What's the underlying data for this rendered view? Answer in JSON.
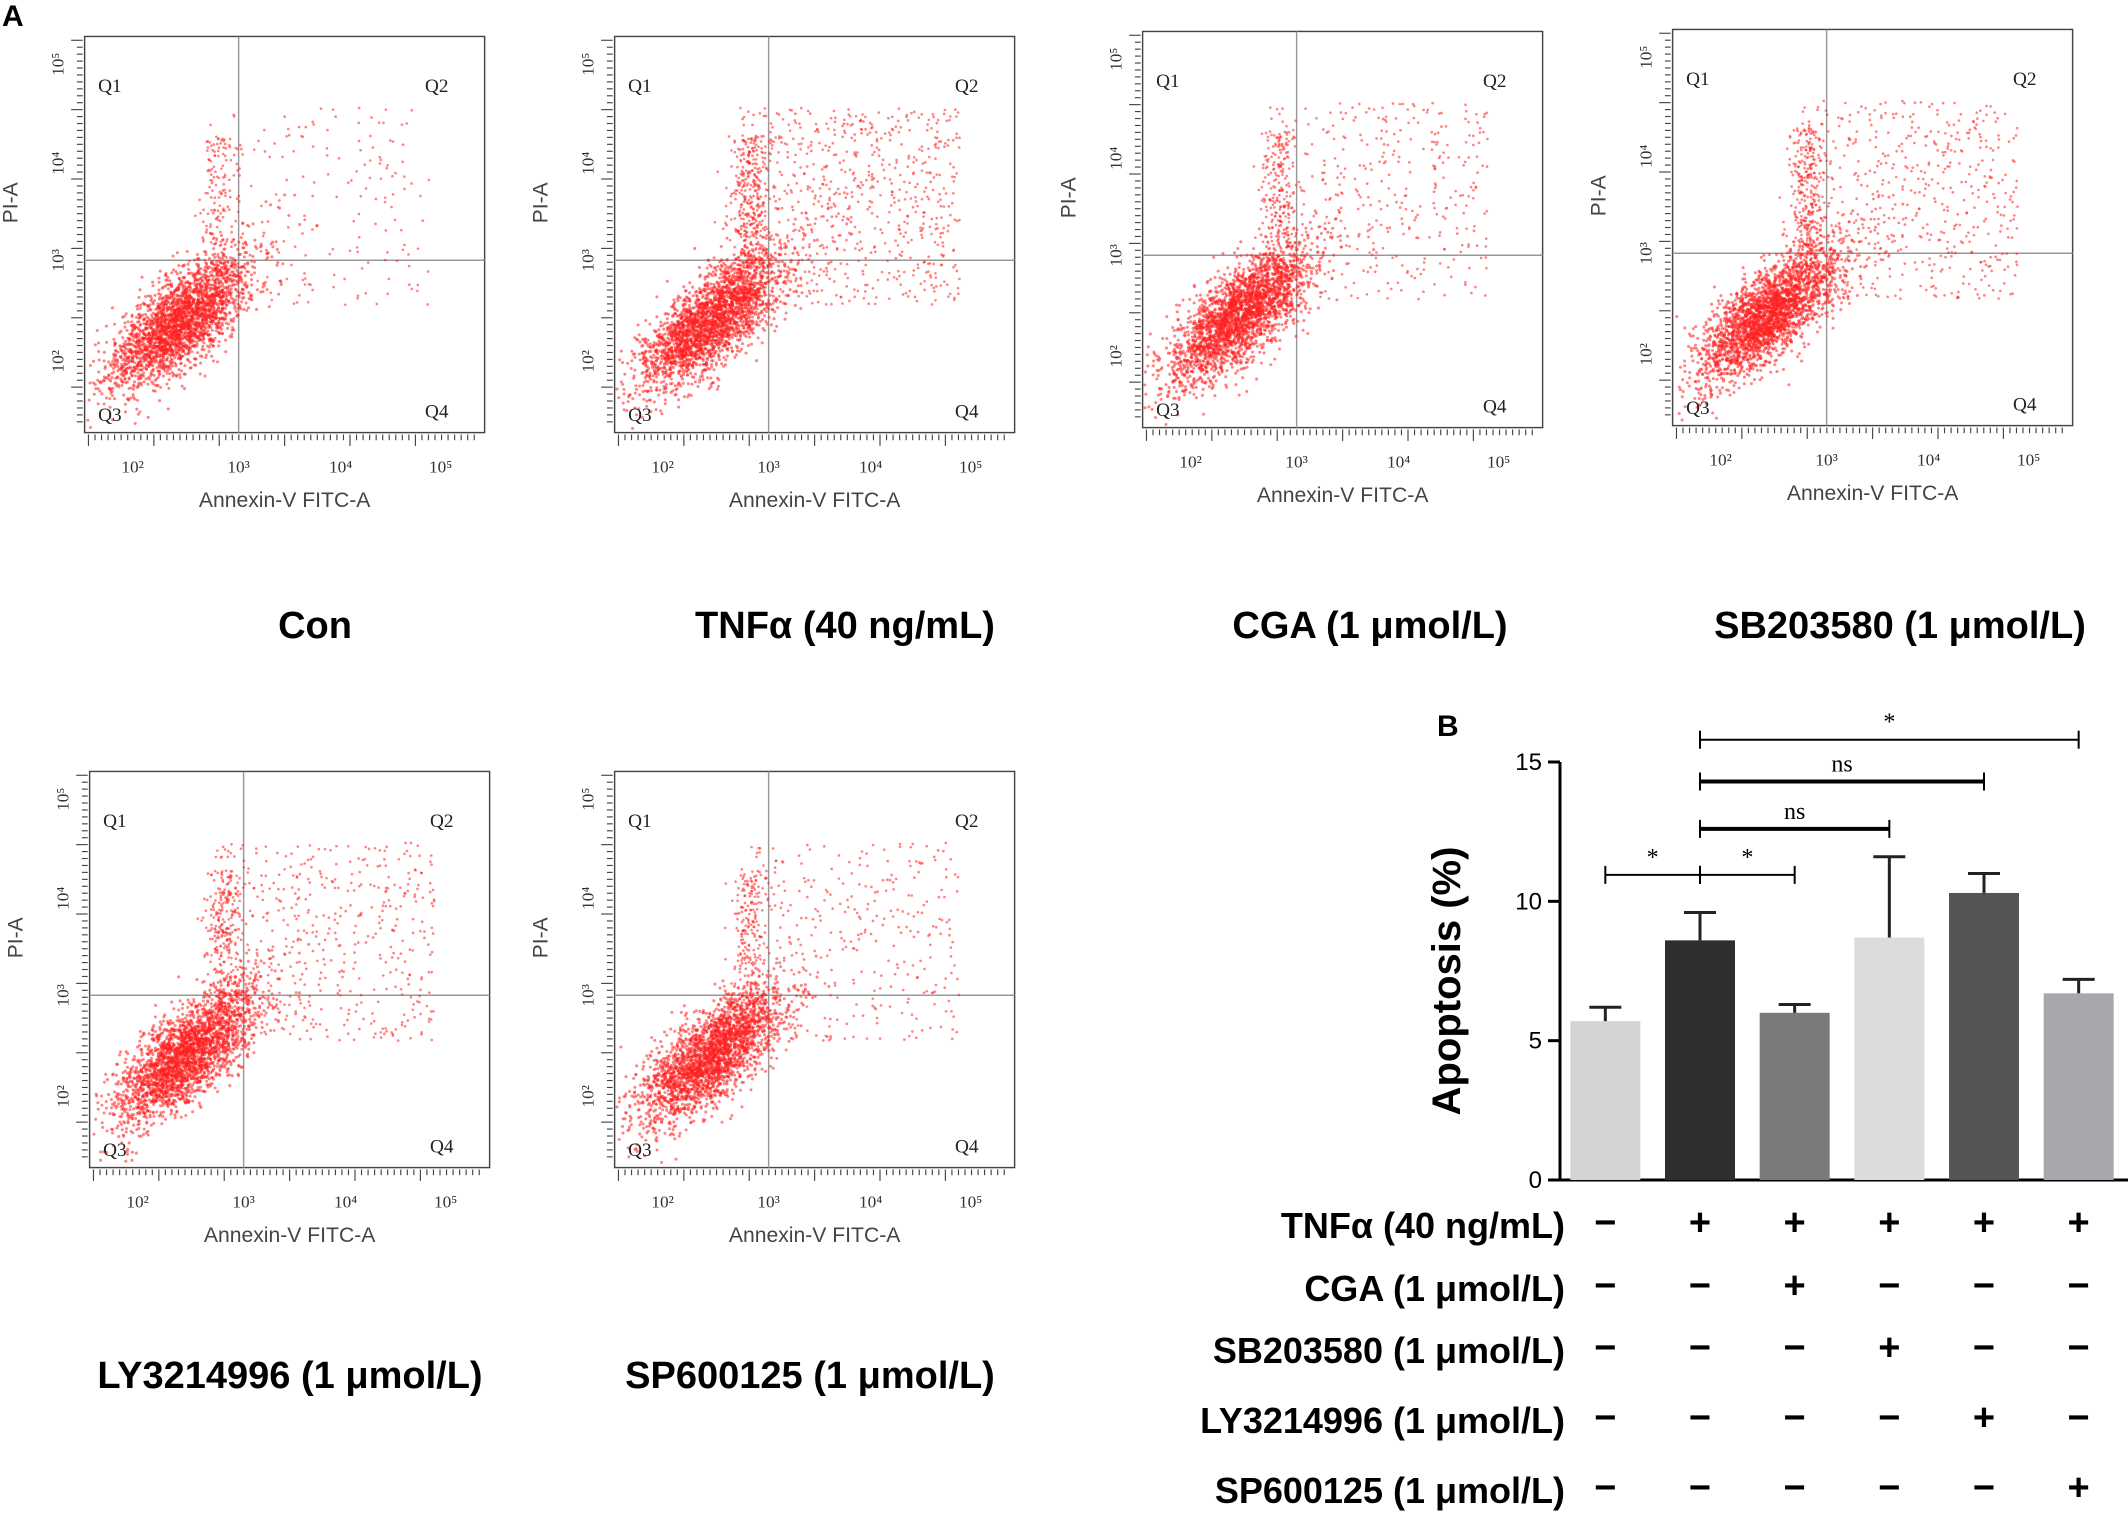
{
  "panel_a": {
    "letter": "A",
    "quadrant_labels": [
      "Q1",
      "Q2",
      "Q3",
      "Q4"
    ],
    "x_axis_label": "Annexin-V FITC-A",
    "y_axis_label": "PI-A",
    "x_ticks": [
      "10²",
      "10³",
      "10⁴",
      "10⁵"
    ],
    "y_ticks": [
      "10²",
      "10³",
      "10⁴",
      "10⁵"
    ],
    "point_color": "#ff2020",
    "plots": [
      {
        "caption": "Con",
        "extra_density": 0.0
      },
      {
        "caption": "TNFα (40 ng/mL)",
        "extra_density": 1.0
      },
      {
        "caption": "CGA (1 μmol/L)",
        "extra_density": 0.4
      },
      {
        "caption": "SB203580 (1 μmol/L)",
        "extra_density": 0.7
      },
      {
        "caption": "LY3214996 (1 μmol/L)",
        "extra_density": 0.6
      },
      {
        "caption": "SP600125 (1 μmol/L)",
        "extra_density": 0.3
      }
    ]
  },
  "panel_b": {
    "letter": "B"
  },
  "chart_data": {
    "type": "bar",
    "ylabel": "Apoptosis (%)",
    "ylim": [
      0,
      15
    ],
    "yticks": [
      "0",
      "5",
      "10",
      "15"
    ],
    "categories": [
      "Con",
      "TNFα",
      "TNFα+CGA",
      "TNFα+SB203580",
      "TNFα+LY3214996",
      "TNFα+SP600125"
    ],
    "values": [
      5.7,
      8.6,
      6.0,
      8.7,
      10.3,
      6.7
    ],
    "errors": [
      0.5,
      1.0,
      0.3,
      2.9,
      0.7,
      0.5
    ],
    "bar_colors": [
      "#d3d3d3",
      "#2e2e2e",
      "#7a7a7a",
      "#dcdcdc",
      "#555555",
      "#a8a8ac"
    ],
    "significance": [
      {
        "from": 0,
        "to": 1,
        "label": "*"
      },
      {
        "from": 1,
        "to": 2,
        "label": "*"
      },
      {
        "from": 1,
        "to": 3,
        "label": "ns"
      },
      {
        "from": 1,
        "to": 4,
        "label": "ns"
      },
      {
        "from": 1,
        "to": 5,
        "label": "*"
      }
    ],
    "treatment_table": [
      {
        "label": "TNFα (40 ng/mL)",
        "signs": [
          "−",
          "+",
          "+",
          "+",
          "+",
          "+"
        ]
      },
      {
        "label": "CGA (1 μmol/L)",
        "signs": [
          "−",
          "−",
          "+",
          "−",
          "−",
          "−"
        ]
      },
      {
        "label": "SB203580 (1 μmol/L)",
        "signs": [
          "−",
          "−",
          "−",
          "+",
          "−",
          "−"
        ]
      },
      {
        "label": "LY3214996 (1 μmol/L)",
        "signs": [
          "−",
          "−",
          "−",
          "−",
          "+",
          "−"
        ]
      },
      {
        "label": "SP600125 (1 μmol/L)",
        "signs": [
          "−",
          "−",
          "−",
          "−",
          "−",
          "+"
        ]
      }
    ]
  }
}
